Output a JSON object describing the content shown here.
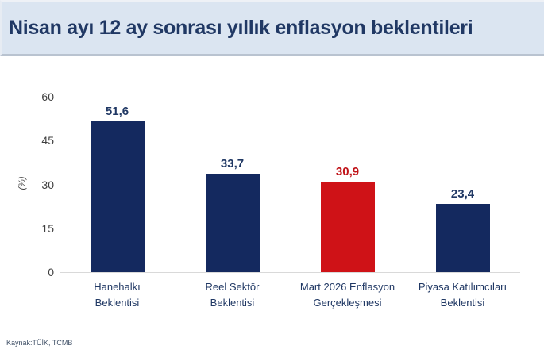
{
  "header": {
    "title": "Nisan ayı 12 ay sonrası yıllık enflasyon beklentileri"
  },
  "chart_data": {
    "type": "bar",
    "title": "Nisan ayı 12 ay sonrası yıllık enflasyon beklentileri",
    "categories": [
      "Hanehalkı Beklentisi",
      "Reel Sektör Beklentisi",
      "Mart 2026 Enflasyon Gerçekleşmesi",
      "Piyasa Katılımcıları Beklentisi"
    ],
    "category_lines": [
      [
        "Hanehalkı",
        "Beklentisi"
      ],
      [
        "Reel Sektör",
        "Beklentisi"
      ],
      [
        "Mart 2026 Enflasyon",
        "Gerçekleşmesi"
      ],
      [
        "Piyasa Katılımcıları",
        "Beklentisi"
      ]
    ],
    "values": [
      51.6,
      33.7,
      30.9,
      23.4
    ],
    "value_labels": [
      "51,6",
      "33,7",
      "30,9",
      "23,4"
    ],
    "bar_colors": [
      "#14295f",
      "#14295f",
      "#cf1217",
      "#14295f"
    ],
    "value_label_colors": [
      "#203864",
      "#203864",
      "#c01318",
      "#203864"
    ],
    "xlabel": "",
    "ylabel": "(%)",
    "ylim": [
      0,
      60
    ],
    "yticks": [
      0,
      15,
      30,
      45,
      60
    ],
    "grid": false,
    "legend": "none"
  },
  "footer": {
    "source": "Kaynak:TÜİK, TCMB"
  },
  "colors": {
    "header_background": "#dbe5f1",
    "title_text": "#203864",
    "navy_bar": "#14295f",
    "red_bar": "#cf1217",
    "red_value_label": "#c01318",
    "axis_line": "#d9d9d9",
    "tick_text": "#3f3f3f"
  }
}
